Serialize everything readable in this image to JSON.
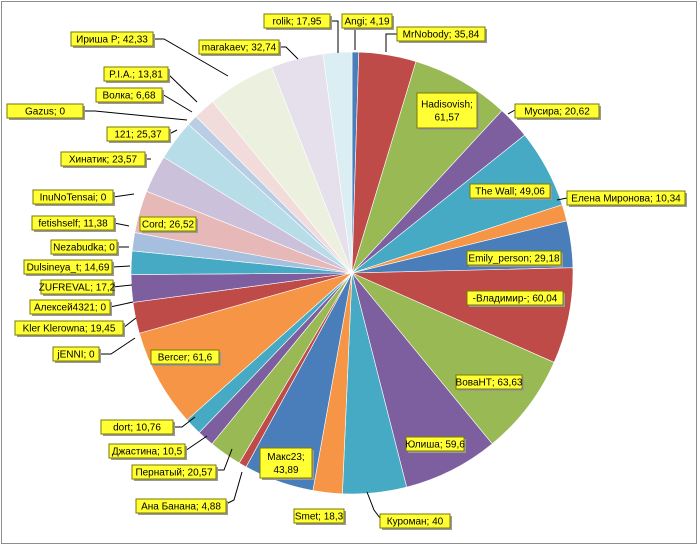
{
  "chart_data": {
    "type": "pie",
    "title": "",
    "start_angle_deg": 0,
    "direction": "clockwise",
    "legend": "none",
    "slices": [
      {
        "label": "Angi; 4,19",
        "value": 4.19,
        "color": "#4a7ebb"
      },
      {
        "label": "MrNobody; 35,84",
        "value": 35.84,
        "color": "#be4b48"
      },
      {
        "label": "Hadisovish; 61,57",
        "value": 61.57,
        "color": "#98b954"
      },
      {
        "label": "Мусира; 20,62",
        "value": 20.62,
        "color": "#7d5fa0"
      },
      {
        "label": "The Wall; 49,06",
        "value": 49.06,
        "color": "#46aac5"
      },
      {
        "label": "Елена Миронова;  10,34",
        "value": 10.34,
        "color": "#f69545"
      },
      {
        "label": "Emily_person; 29,18",
        "value": 29.18,
        "color": "#4a7ebb"
      },
      {
        "label": "-Владимир-; 60,04",
        "value": 60.04,
        "color": "#be4b48"
      },
      {
        "label": "ВоваНТ; 63,63",
        "value": 63.63,
        "color": "#98b954"
      },
      {
        "label": "Юлиша; 59,6",
        "value": 59.6,
        "color": "#7d5fa0"
      },
      {
        "label": "Куроман; 40",
        "value": 40,
        "color": "#46aac5"
      },
      {
        "label": "Smet; 18,3",
        "value": 18.3,
        "color": "#f69545"
      },
      {
        "label": "Макс23; 43,89",
        "value": 43.89,
        "color": "#4a7ebb"
      },
      {
        "label": "Ана Банана;  4,88",
        "value": 4.88,
        "color": "#be4b48"
      },
      {
        "label": "Пернатый; 20,57",
        "value": 20.57,
        "color": "#98b954"
      },
      {
        "label": "Джастина; 10,5",
        "value": 10.5,
        "color": "#7d5fa0"
      },
      {
        "label": "dort; 10,76",
        "value": 10.76,
        "color": "#46aac5"
      },
      {
        "label": "Bercer; 61,6",
        "value": 61.6,
        "color": "#f69545"
      },
      {
        "label": "jENNI; 0",
        "value": 0,
        "color": "#4a7ebb"
      },
      {
        "label": "Kler Klerowna; 19,45",
        "value": 19.45,
        "color": "#be4b48"
      },
      {
        "label": "Алексей4321; 0",
        "value": 0,
        "color": "#98b954"
      },
      {
        "label": "ZUFREVAL; 17,2",
        "value": 17.2,
        "color": "#7d5fa0"
      },
      {
        "label": "Dulsineya_t; 14,69",
        "value": 14.69,
        "color": "#46aac5"
      },
      {
        "label": "Nezabudka; 0",
        "value": 0,
        "color": "#f69545"
      },
      {
        "label": "fetishself; 11,38",
        "value": 11.38,
        "color": "#a7bfde"
      },
      {
        "label": "Cord; 26,52",
        "value": 26.52,
        "color": "#e6b9b8"
      },
      {
        "label": "InuNoTensai; 0",
        "value": 0,
        "color": "#d7e4bd"
      },
      {
        "label": "Хинатик; 23,57",
        "value": 23.57,
        "color": "#ccc1da"
      },
      {
        "label": "121; 25,37",
        "value": 25.37,
        "color": "#b7dee8"
      },
      {
        "label": "Gazus; 0",
        "value": 0,
        "color": "#fcd5b5"
      },
      {
        "label": "Волка; 6,68",
        "value": 6.68,
        "color": "#b9cde5"
      },
      {
        "label": "P.I.A.; 13,81",
        "value": 13.81,
        "color": "#f2dcdb"
      },
      {
        "label": "Ириша Р; 42,33",
        "value": 42.33,
        "color": "#ebf1de"
      },
      {
        "label": "marakaev; 32,74",
        "value": 32.74,
        "color": "#e6e0ec"
      },
      {
        "label": "rolik; 17,95",
        "value": 17.95,
        "color": "#dbeef4"
      }
    ]
  }
}
